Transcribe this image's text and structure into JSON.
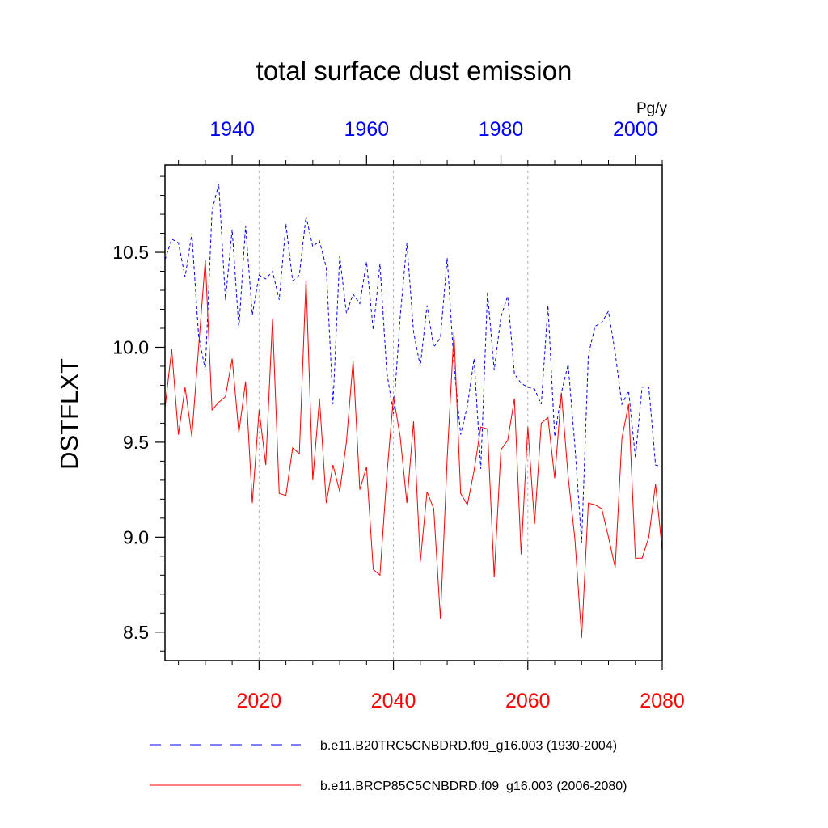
{
  "chart_data": {
    "type": "line",
    "title": "total surface dust emission",
    "ylabel": "DSTFLXT",
    "units": "Pg/y",
    "ylim": [
      8.35,
      10.96
    ],
    "yticks": [
      8.5,
      9.0,
      9.5,
      10.0,
      10.5
    ],
    "ytick_labels": [
      "8.5",
      "9.0",
      "9.5",
      "10.0",
      "10.5"
    ],
    "bottom_axis": {
      "range": [
        2006,
        2080
      ],
      "ticks": [
        2020,
        2040,
        2060,
        2080
      ],
      "tick_labels": [
        "2020",
        "2040",
        "2060",
        "2080"
      ],
      "color": "#ff0000"
    },
    "top_axis": {
      "range": [
        1930,
        2004
      ],
      "ticks": [
        1940,
        1960,
        1980,
        2000
      ],
      "tick_labels": [
        "1940",
        "1960",
        "1980",
        "2000"
      ],
      "color": "#0000ff"
    },
    "grid_verticals": [
      2020,
      2040,
      2060
    ],
    "series": [
      {
        "name": "b.e11.B20TRC5CNBDRD.f09_g16.003 (1930-2004)",
        "axis": "top",
        "color": "#0000ff",
        "dash": "dashed",
        "start": 1930,
        "values": [
          10.46,
          10.57,
          10.55,
          10.37,
          10.6,
          10.06,
          9.88,
          10.72,
          10.86,
          10.25,
          10.62,
          10.1,
          10.64,
          10.17,
          10.38,
          10.36,
          10.4,
          10.25,
          10.65,
          10.35,
          10.38,
          10.69,
          10.53,
          10.56,
          10.42,
          9.7,
          10.48,
          10.18,
          10.28,
          10.23,
          10.45,
          10.09,
          10.44,
          9.87,
          9.65,
          10.16,
          10.55,
          10.08,
          9.9,
          10.22,
          10.0,
          10.05,
          10.47,
          9.91,
          9.54,
          9.69,
          9.94,
          9.36,
          10.29,
          9.88,
          10.16,
          10.27,
          9.86,
          9.81,
          9.79,
          9.78,
          9.7,
          10.22,
          9.53,
          9.76,
          9.91,
          9.48,
          8.97,
          9.96,
          10.11,
          10.13,
          10.19,
          9.97,
          9.7,
          9.77,
          9.42,
          9.79,
          9.79,
          9.38,
          9.37
        ]
      },
      {
        "name": "b.e11.BRCP85C5CNBDRD.f09_g16.003 (2006-2080)",
        "axis": "bottom",
        "color": "#ff0000",
        "dash": "solid",
        "start": 2006,
        "values": [
          9.68,
          9.99,
          9.54,
          9.79,
          9.53,
          10.0,
          10.46,
          9.67,
          9.71,
          9.74,
          9.94,
          9.55,
          9.82,
          9.18,
          9.67,
          9.38,
          10.15,
          9.23,
          9.22,
          9.47,
          9.44,
          10.36,
          9.3,
          9.73,
          9.18,
          9.38,
          9.24,
          9.5,
          9.93,
          9.25,
          9.37,
          8.83,
          8.8,
          9.32,
          9.74,
          9.53,
          9.18,
          9.61,
          8.87,
          9.24,
          9.15,
          8.57,
          9.42,
          10.08,
          9.23,
          9.17,
          9.35,
          9.58,
          9.57,
          8.79,
          9.46,
          9.51,
          9.73,
          8.91,
          9.58,
          9.07,
          9.6,
          9.63,
          9.31,
          9.76,
          9.32,
          8.99,
          8.47,
          9.18,
          9.17,
          9.15,
          9.0,
          8.84,
          9.52,
          9.7,
          8.89,
          8.89,
          9.0,
          9.28,
          8.93
        ]
      }
    ]
  }
}
